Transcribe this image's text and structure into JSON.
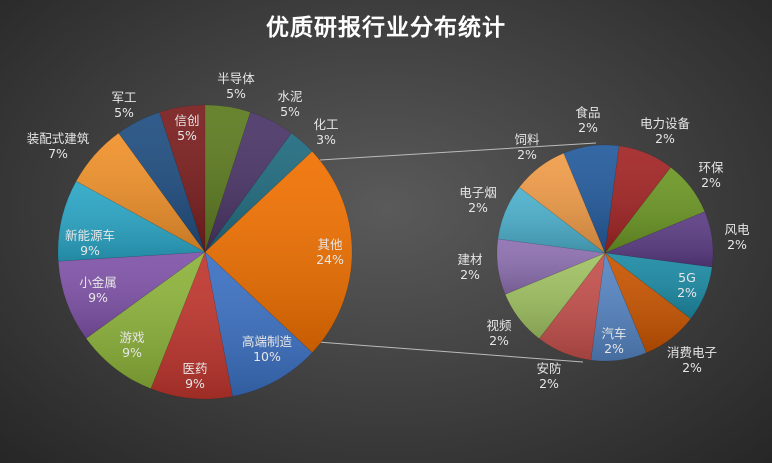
{
  "chart_data": {
    "type": "pie-of-pie",
    "title": "优质研报行业分布统计",
    "main_pie": {
      "slices": [
        {
          "label": "半导体",
          "value": 5,
          "text": "5%",
          "color": "#5c7a1f"
        },
        {
          "label": "水泥",
          "value": 5,
          "text": "5%",
          "color": "#4a3466"
        },
        {
          "label": "化工",
          "value": 3,
          "text": "3%",
          "color": "#1e6a7e"
        },
        {
          "label": "其他",
          "value": 24,
          "text": "24%",
          "color": "#f07000"
        },
        {
          "label": "高端制造",
          "value": 10,
          "text": "10%",
          "color": "#3b70c2"
        },
        {
          "label": "医药",
          "value": 9,
          "text": "9%",
          "color": "#c0362e"
        },
        {
          "label": "游戏",
          "value": 9,
          "text": "9%",
          "color": "#8db33a"
        },
        {
          "label": "小金属",
          "value": 9,
          "text": "9%",
          "color": "#7f52a8"
        },
        {
          "label": "新能源车",
          "value": 9,
          "text": "9%",
          "color": "#2aa6c6"
        },
        {
          "label": "装配式建筑",
          "value": 7,
          "text": "7%",
          "color": "#f0912a"
        },
        {
          "label": "军工",
          "value": 5,
          "text": "5%",
          "color": "#1f4d80"
        },
        {
          "label": "信创",
          "value": 5,
          "text": "5%",
          "color": "#7a1d1d"
        }
      ]
    },
    "secondary_pie": {
      "slices": [
        {
          "label": "食品",
          "value": 2,
          "text": "2%",
          "color": "#235a9c"
        },
        {
          "label": "电力设备",
          "value": 2,
          "text": "2%",
          "color": "#a22424"
        },
        {
          "label": "环保",
          "value": 2,
          "text": "2%",
          "color": "#6b9624"
        },
        {
          "label": "风电",
          "value": 2,
          "text": "2%",
          "color": "#5a3b82"
        },
        {
          "label": "5G",
          "value": 2,
          "text": "2%",
          "color": "#1b8aa4"
        },
        {
          "label": "消费电子",
          "value": 2,
          "text": "2%",
          "color": "#c85400"
        },
        {
          "label": "汽车",
          "value": 2,
          "text": "2%",
          "color": "#5584c2"
        },
        {
          "label": "安防",
          "value": 2,
          "text": "2%",
          "color": "#c4504c"
        },
        {
          "label": "视频",
          "value": 2,
          "text": "2%",
          "color": "#a0c262"
        },
        {
          "label": "建材",
          "value": 2,
          "text": "2%",
          "color": "#8d6fb0"
        },
        {
          "label": "电子烟",
          "value": 2,
          "text": "2%",
          "color": "#4cb0cc"
        },
        {
          "label": "饲料",
          "value": 2,
          "text": "2%",
          "color": "#f09c48"
        }
      ]
    },
    "split_slice": "其他",
    "legend": "none"
  }
}
